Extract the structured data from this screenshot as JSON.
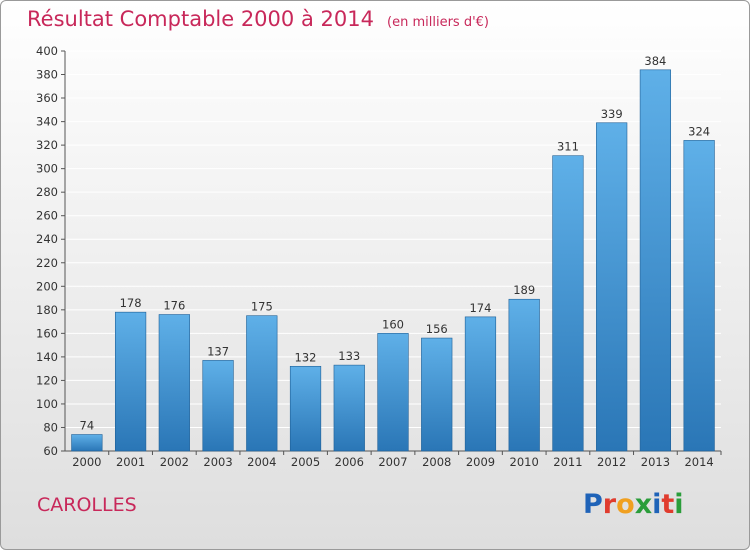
{
  "header": {
    "title": "Résultat Comptable 2000 à 2014",
    "subtitle": "(en milliers d'€)"
  },
  "footer": {
    "commune": "CAROLLES",
    "brand_letters": [
      "P",
      "r",
      "o",
      "x",
      "i",
      "t",
      "i"
    ],
    "brand_colors": [
      "#1f63b8",
      "#e03c2e",
      "#f0a020",
      "#2a9d3a",
      "#1f63b8",
      "#e03c2e",
      "#2a9d3a"
    ]
  },
  "colors": {
    "bar_light": "#5fb0e8",
    "bar_dark": "#2a76b6",
    "title": "#c8285a",
    "grid": "#ffffff"
  },
  "chart_data": {
    "type": "bar",
    "title": "Résultat Comptable 2000 à 2014",
    "subtitle": "(en milliers d'€)",
    "categories": [
      "2000",
      "2001",
      "2002",
      "2003",
      "2004",
      "2005",
      "2006",
      "2007",
      "2008",
      "2009",
      "2010",
      "2011",
      "2012",
      "2013",
      "2014"
    ],
    "values": [
      74,
      178,
      176,
      137,
      175,
      132,
      133,
      160,
      156,
      174,
      189,
      311,
      339,
      384,
      324
    ],
    "ylim": [
      60,
      400
    ],
    "yticks": [
      60,
      80,
      100,
      120,
      140,
      160,
      180,
      200,
      220,
      240,
      260,
      280,
      300,
      320,
      340,
      360,
      380,
      400
    ],
    "grid": true,
    "data_labels": true
  }
}
